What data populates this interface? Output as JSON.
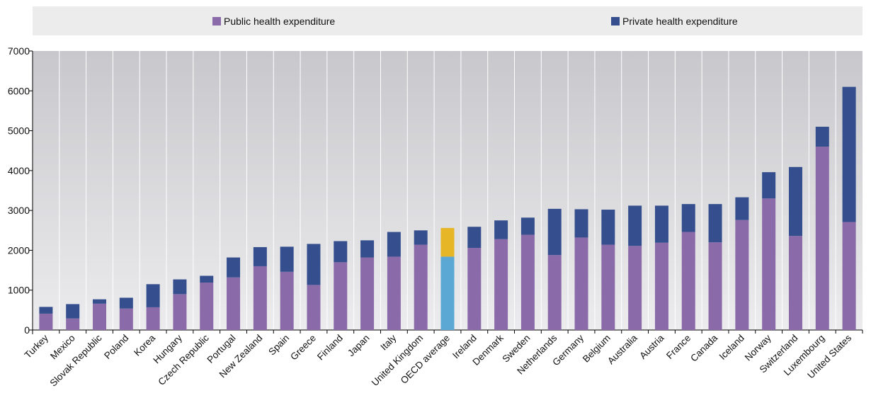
{
  "legend": {
    "public_label": "Public health expenditure",
    "private_label": "Private health expenditure"
  },
  "colors": {
    "public": "#8a6aa8",
    "private": "#354f8e",
    "highlight_public": "#5ba8d4",
    "highlight_private": "#e6b626",
    "plot_bg_top": "#c8c8cc",
    "plot_bg_bottom": "#ececee",
    "legend_bg": "#ececec"
  },
  "chart_data": {
    "type": "bar",
    "stacked": true,
    "categories": [
      "Turkey",
      "Mexico",
      "Slovak Republic",
      "Poland",
      "Korea",
      "Hungary",
      "Czech Republic",
      "Portugal",
      "New Zealand",
      "Spain",
      "Greece",
      "Finland",
      "Japan",
      "Italy",
      "United Kingdom",
      "OECD average",
      "Ireland",
      "Denmark",
      "Sweden",
      "Netherlands",
      "Germany",
      "Belgium",
      "Australia",
      "Austria",
      "France",
      "Canada",
      "Iceland",
      "Norway",
      "Switzerland",
      "Luxembourg",
      "United States"
    ],
    "series": [
      {
        "name": "Public health expenditure",
        "values": [
          410,
          290,
          660,
          540,
          570,
          900,
          1190,
          1320,
          1600,
          1460,
          1130,
          1700,
          1820,
          1840,
          2140,
          1840,
          2060,
          2280,
          2390,
          1880,
          2320,
          2140,
          2110,
          2190,
          2460,
          2200,
          2760,
          3300,
          2360,
          4600,
          2710
        ]
      },
      {
        "name": "Private health expenditure",
        "values": [
          170,
          360,
          110,
          270,
          580,
          370,
          170,
          500,
          480,
          630,
          1030,
          530,
          430,
          620,
          360,
          720,
          530,
          470,
          430,
          1160,
          710,
          880,
          1010,
          930,
          700,
          960,
          570,
          660,
          1730,
          500,
          3390
        ]
      }
    ],
    "highlight_category": "OECD average",
    "ylim": [
      0,
      7000
    ],
    "yticks": [
      0,
      1000,
      2000,
      3000,
      4000,
      5000,
      6000,
      7000
    ],
    "title": "",
    "xlabel": "",
    "ylabel": "",
    "grid": "vertical",
    "legend_position": "top"
  }
}
